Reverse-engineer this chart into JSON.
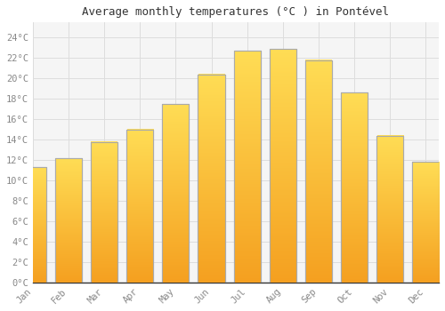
{
  "months": [
    "Jan",
    "Feb",
    "Mar",
    "Apr",
    "May",
    "Jun",
    "Jul",
    "Aug",
    "Sep",
    "Oct",
    "Nov",
    "Dec"
  ],
  "values": [
    11.3,
    12.2,
    13.8,
    15.0,
    17.5,
    20.4,
    22.7,
    22.9,
    21.8,
    18.6,
    14.4,
    11.8
  ],
  "title": "Average monthly temperatures (°C ) in Pontével",
  "bar_color_bottom": "#F5A623",
  "bar_color_top": "#FFD966",
  "bar_edge_color": "#AAAAAA",
  "background_color": "#FFFFFF",
  "plot_bg_color": "#F5F5F5",
  "grid_color": "#DDDDDD",
  "ytick_labels": [
    "0°C",
    "2°C",
    "4°C",
    "6°C",
    "8°C",
    "10°C",
    "12°C",
    "14°C",
    "16°C",
    "18°C",
    "20°C",
    "22°C",
    "24°C"
  ],
  "ytick_values": [
    0,
    2,
    4,
    6,
    8,
    10,
    12,
    14,
    16,
    18,
    20,
    22,
    24
  ],
  "ylim": [
    0,
    25.5
  ],
  "title_fontsize": 9,
  "tick_fontsize": 7.5,
  "tick_color": "#888888",
  "font_family": "monospace",
  "axis_color": "#333333"
}
